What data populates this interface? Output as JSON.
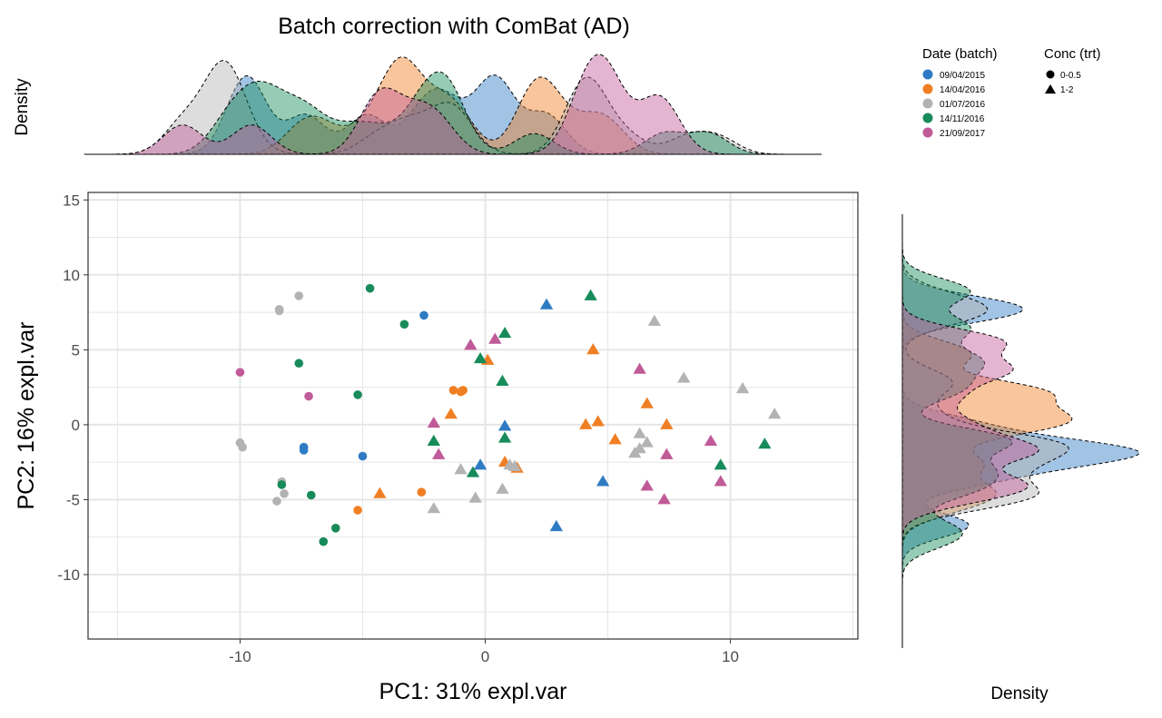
{
  "chart_data": {
    "type": "scatter",
    "title": "Batch correction with ComBat (AD)",
    "xlabel": "PC1: 31% expl.var",
    "ylabel": "PC2: 16% expl.var",
    "xlim": [
      -16.2,
      15.2
    ],
    "ylim": [
      -14.3,
      15.5
    ],
    "xticks": [
      -10,
      0,
      10
    ],
    "yticks": [
      -10,
      -5,
      0,
      5,
      10,
      15
    ],
    "grid": true,
    "top_density_ylabel": "Density",
    "right_density_xlabel": "Density",
    "legend": {
      "placement": "top-right",
      "batch_title": "Date (batch)",
      "trt_title": "Conc (trt)",
      "batches": [
        {
          "name": "09/04/2015",
          "color": "#2e7bc4"
        },
        {
          "name": "14/04/2016",
          "color": "#f07f23"
        },
        {
          "name": "01/07/2016",
          "color": "#b3b3b3"
        },
        {
          "name": "14/11/2016",
          "color": "#178b5a"
        },
        {
          "name": "21/09/2017",
          "color": "#c05a98"
        }
      ],
      "treatments": [
        {
          "name": "0-0.5",
          "shape": "circle"
        },
        {
          "name": "1-2",
          "shape": "triangle"
        }
      ]
    },
    "series": [
      {
        "batch": "09/04/2015",
        "trt": "0-0.5",
        "points": [
          [
            -2.5,
            7.3
          ],
          [
            -7.4,
            -1.5
          ],
          [
            -7.4,
            -1.7
          ],
          [
            -5,
            -2.1
          ]
        ]
      },
      {
        "batch": "09/04/2015",
        "trt": "1-2",
        "points": [
          [
            2.5,
            8
          ],
          [
            -0.2,
            -2.7
          ],
          [
            0.8,
            -0.1
          ],
          [
            4.8,
            -3.8
          ],
          [
            2.9,
            -6.8
          ]
        ]
      },
      {
        "batch": "14/04/2016",
        "trt": "0-0.5",
        "points": [
          [
            -1.3,
            2.3
          ],
          [
            -1,
            2.2
          ],
          [
            -0.9,
            2.3
          ],
          [
            -2.6,
            -4.5
          ],
          [
            -5.2,
            -5.7
          ]
        ]
      },
      {
        "batch": "14/04/2016",
        "trt": "1-2",
        "points": [
          [
            0.1,
            4.3
          ],
          [
            4.4,
            5
          ],
          [
            -1.4,
            0.7
          ],
          [
            6.6,
            1.4
          ],
          [
            4.1,
            0
          ],
          [
            4.6,
            0.2
          ],
          [
            7.4,
            0
          ],
          [
            5.3,
            -1
          ],
          [
            1.3,
            -2.9
          ],
          [
            0.8,
            -2.5
          ],
          [
            -4.3,
            -4.6
          ]
        ]
      },
      {
        "batch": "01/07/2016",
        "trt": "0-0.5",
        "points": [
          [
            -7.6,
            8.6
          ],
          [
            -8.4,
            7.7
          ],
          [
            -8.4,
            7.6
          ],
          [
            -10,
            -1.2
          ],
          [
            -9.9,
            -1.5
          ],
          [
            -8.3,
            -3.8
          ],
          [
            -8.2,
            -4.6
          ],
          [
            -8.5,
            -5.1
          ]
        ]
      },
      {
        "batch": "01/07/2016",
        "trt": "1-2",
        "points": [
          [
            6.9,
            6.9
          ],
          [
            8.1,
            3.1
          ],
          [
            10.5,
            2.4
          ],
          [
            11.8,
            0.7
          ],
          [
            6.3,
            -0.6
          ],
          [
            6.6,
            -1.2
          ],
          [
            6.3,
            -1.6
          ],
          [
            6.1,
            -1.9
          ],
          [
            1,
            -2.7
          ],
          [
            1.2,
            -2.8
          ],
          [
            -1,
            -3
          ],
          [
            0.7,
            -4.3
          ],
          [
            -0.4,
            -4.9
          ],
          [
            -2.1,
            -5.6
          ]
        ]
      },
      {
        "batch": "14/11/2016",
        "trt": "0-0.5",
        "points": [
          [
            -4.7,
            9.1
          ],
          [
            -3.3,
            6.7
          ],
          [
            -7.6,
            4.1
          ],
          [
            -5.2,
            2
          ],
          [
            -8.3,
            -4
          ],
          [
            -7.1,
            -4.7
          ],
          [
            -6.1,
            -6.9
          ],
          [
            -6.6,
            -7.8
          ]
        ]
      },
      {
        "batch": "14/11/2016",
        "trt": "1-2",
        "points": [
          [
            4.3,
            8.6
          ],
          [
            0.8,
            6.1
          ],
          [
            -0.2,
            4.4
          ],
          [
            0.7,
            2.9
          ],
          [
            -2.1,
            -1.1
          ],
          [
            0.8,
            -0.9
          ],
          [
            -0.5,
            -3.2
          ],
          [
            9.6,
            -2.7
          ],
          [
            11.4,
            -1.3
          ]
        ]
      },
      {
        "batch": "21/09/2017",
        "trt": "0-0.5",
        "points": [
          [
            -10,
            3.5
          ],
          [
            -7.2,
            1.9
          ]
        ]
      },
      {
        "batch": "21/09/2017",
        "trt": "1-2",
        "points": [
          [
            -0.6,
            5.3
          ],
          [
            0.4,
            5.7
          ],
          [
            6.3,
            3.7
          ],
          [
            -2.1,
            0.1
          ],
          [
            -1.9,
            -2
          ],
          [
            9.2,
            -1.1
          ],
          [
            7.4,
            -2
          ],
          [
            9.6,
            -3.8
          ],
          [
            6.6,
            -4.1
          ],
          [
            7.3,
            -5
          ]
        ]
      }
    ]
  }
}
